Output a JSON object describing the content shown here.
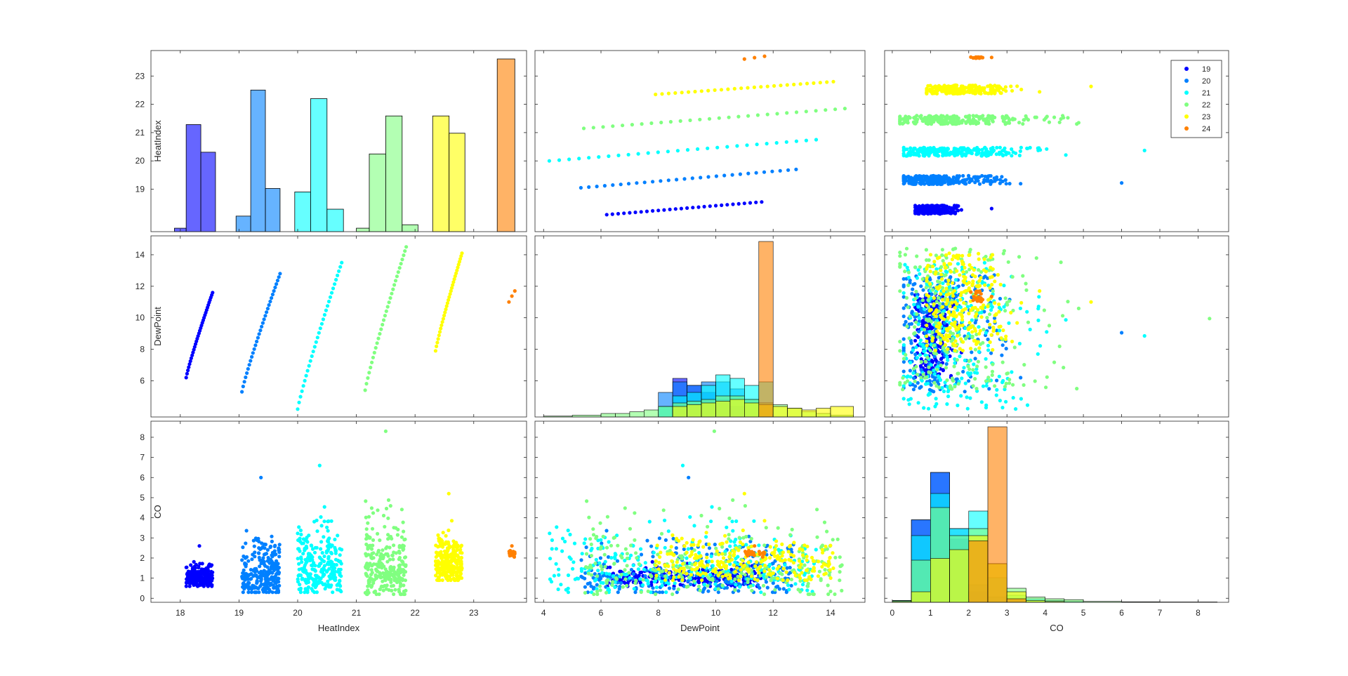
{
  "chart_data": {
    "type": "scatter",
    "title": "",
    "variables": [
      {
        "label": "HeatIndex",
        "range": [
          17.5,
          23.9
        ],
        "ticks": [
          "18",
          "19",
          "20",
          "21",
          "22",
          "23"
        ]
      },
      {
        "label": "DewPoint",
        "range": [
          3.7,
          15.2
        ],
        "ticks": [
          "4",
          "6",
          "8",
          "10",
          "12",
          "14"
        ]
      },
      {
        "label": "CO",
        "range": [
          -0.2,
          8.8
        ],
        "ticks": [
          "0",
          "1",
          "2",
          "3",
          "4",
          "5",
          "6",
          "7",
          "8"
        ]
      }
    ],
    "row_ticks": [
      [
        "19",
        "20",
        "21",
        "22",
        "23"
      ],
      [
        "6",
        "8",
        "10",
        "12",
        "14"
      ],
      [
        "0",
        "1",
        "2",
        "3",
        "4",
        "5",
        "6",
        "7",
        "8"
      ]
    ],
    "legend": {
      "placement": "top-right",
      "entries": [
        {
          "label": "19",
          "color": "#0000ff"
        },
        {
          "label": "20",
          "color": "#0080ff"
        },
        {
          "label": "21",
          "color": "#00ffff"
        },
        {
          "label": "22",
          "color": "#80ff80"
        },
        {
          "label": "23",
          "color": "#ffff00"
        },
        {
          "label": "24",
          "color": "#ff8000"
        }
      ]
    },
    "groups": [
      {
        "label": "19",
        "color": "#0000ff",
        "heatindex": [
          18.1,
          18.55
        ],
        "dewpoint_line": [
          [
            18.1,
            6.2
          ],
          [
            18.55,
            11.6
          ]
        ],
        "co_range": [
          0.6,
          2.6
        ],
        "co_center": 1.0
      },
      {
        "label": "20",
        "color": "#0080ff",
        "heatindex": [
          19.05,
          19.7
        ],
        "dewpoint_line": [
          [
            19.05,
            5.3
          ],
          [
            19.7,
            12.8
          ]
        ],
        "co_range": [
          0.3,
          6.0
        ],
        "co_center": 1.2
      },
      {
        "label": "21",
        "color": "#00ffff",
        "heatindex": [
          20.0,
          20.75
        ],
        "dewpoint_line": [
          [
            20.0,
            4.2
          ],
          [
            20.75,
            13.5
          ]
        ],
        "co_range": [
          0.3,
          6.6
        ],
        "co_center": 1.5
      },
      {
        "label": "22",
        "color": "#80ff80",
        "heatindex": [
          21.15,
          21.85
        ],
        "dewpoint_line": [
          [
            21.15,
            5.4
          ],
          [
            21.85,
            14.5
          ]
        ],
        "co_range": [
          0.2,
          8.3
        ],
        "co_center": 1.6
      },
      {
        "label": "23",
        "color": "#ffff00",
        "heatindex": [
          22.35,
          22.8
        ],
        "dewpoint_line": [
          [
            22.35,
            7.9
          ],
          [
            22.8,
            14.1
          ]
        ],
        "co_range": [
          0.9,
          5.2
        ],
        "co_center": 1.7
      },
      {
        "label": "24",
        "color": "#ff8000",
        "heatindex": [
          23.6,
          23.7
        ],
        "dewpoint_line": [
          [
            23.6,
            11.0
          ],
          [
            23.7,
            11.7
          ]
        ],
        "co_range": [
          1.9,
          2.6
        ],
        "co_center": 2.2
      }
    ],
    "heatindex_histogram": [
      {
        "group": "19",
        "bins": [
          [
            17.9,
            18.1,
            0.02
          ],
          [
            18.1,
            18.35,
            0.62
          ],
          [
            18.35,
            18.6,
            0.46
          ]
        ]
      },
      {
        "group": "20",
        "bins": [
          [
            18.95,
            19.2,
            0.09
          ],
          [
            19.2,
            19.45,
            0.82
          ],
          [
            19.45,
            19.7,
            0.25
          ]
        ]
      },
      {
        "group": "21",
        "bins": [
          [
            19.95,
            20.22,
            0.23
          ],
          [
            20.22,
            20.5,
            0.77
          ],
          [
            20.5,
            20.78,
            0.13
          ]
        ]
      },
      {
        "group": "22",
        "bins": [
          [
            21.0,
            21.22,
            0.02
          ],
          [
            21.22,
            21.5,
            0.45
          ],
          [
            21.5,
            21.78,
            0.67
          ],
          [
            21.78,
            22.05,
            0.04
          ]
        ]
      },
      {
        "group": "23",
        "bins": [
          [
            22.3,
            22.58,
            0.67
          ],
          [
            22.58,
            22.85,
            0.57
          ]
        ]
      },
      {
        "group": "24",
        "bins": [
          [
            23.4,
            23.7,
            1.0
          ]
        ]
      }
    ],
    "dewpoint_histogram": {
      "edges": [
        4.0,
        5.0,
        6.0,
        6.5,
        7.0,
        7.5,
        8.0,
        8.5,
        9.0,
        9.5,
        10.0,
        10.5,
        11.0,
        11.5,
        12.0,
        12.5,
        13.0,
        13.5,
        14.0,
        14.8
      ],
      "stack": [
        {
          "group": "19",
          "values": [
            0,
            0,
            0,
            0,
            0,
            0,
            0,
            0.22,
            0.18,
            0.14,
            0.1,
            0.06,
            0,
            0,
            0,
            0,
            0,
            0,
            0
          ]
        },
        {
          "group": "20",
          "values": [
            0,
            0,
            0,
            0,
            0,
            0,
            0.14,
            0.2,
            0.18,
            0.2,
            0.2,
            0.16,
            0.1,
            0,
            0,
            0,
            0,
            0,
            0
          ]
        },
        {
          "group": "21",
          "values": [
            0,
            0,
            0,
            0,
            0,
            0,
            0.06,
            0.12,
            0.14,
            0.18,
            0.24,
            0.22,
            0.18,
            0.2,
            0,
            0,
            0,
            0,
            0
          ]
        },
        {
          "group": "22",
          "values": [
            0.005,
            0.01,
            0.02,
            0.02,
            0.03,
            0.04,
            0.06,
            0.08,
            0.09,
            0.1,
            0.12,
            0.12,
            0.1,
            0.08,
            0.07,
            0.05,
            0.03,
            0.02,
            0.01
          ]
        },
        {
          "group": "23",
          "values": [
            0,
            0,
            0,
            0,
            0,
            0,
            0,
            0.06,
            0.07,
            0.08,
            0.09,
            0.1,
            0.08,
            0.07,
            0.06,
            0.05,
            0.04,
            0.05,
            0.06
          ]
        },
        {
          "group": "24",
          "values": [
            0,
            0,
            0,
            0,
            0,
            0,
            0,
            0,
            0,
            0,
            0,
            0,
            0,
            1.0,
            0,
            0,
            0,
            0,
            0
          ]
        }
      ]
    },
    "co_histogram": {
      "edges": [
        0,
        0.5,
        1.0,
        1.5,
        2.0,
        2.5,
        3.0,
        3.5,
        4.0,
        4.5,
        5.0,
        6.0,
        7.0,
        8.5
      ],
      "stack": [
        {
          "group": "19",
          "values": [
            0.01,
            0.47,
            0.74,
            0.36,
            0.06,
            0,
            0,
            0,
            0,
            0,
            0,
            0,
            0
          ]
        },
        {
          "group": "20",
          "values": [
            0.01,
            0.47,
            0.74,
            0.42,
            0.1,
            0.03,
            0.01,
            0.005,
            0,
            0,
            0,
            0,
            0
          ]
        },
        {
          "group": "21",
          "values": [
            0.01,
            0.38,
            0.62,
            0.42,
            0.52,
            0.14,
            0.04,
            0.02,
            0.01,
            0.005,
            0,
            0,
            0
          ]
        },
        {
          "group": "22",
          "values": [
            0.01,
            0.24,
            0.54,
            0.38,
            0.42,
            0.22,
            0.08,
            0.03,
            0.02,
            0.015,
            0.005,
            0.003,
            0.002
          ]
        },
        {
          "group": "23",
          "values": [
            0.005,
            0.06,
            0.25,
            0.3,
            0.38,
            0.22,
            0.06,
            0.01,
            0.005,
            0,
            0,
            0,
            0
          ]
        },
        {
          "group": "24",
          "values": [
            0,
            0,
            0,
            0,
            0.35,
            1.0,
            0.02,
            0,
            0,
            0,
            0,
            0,
            0
          ]
        }
      ]
    }
  }
}
